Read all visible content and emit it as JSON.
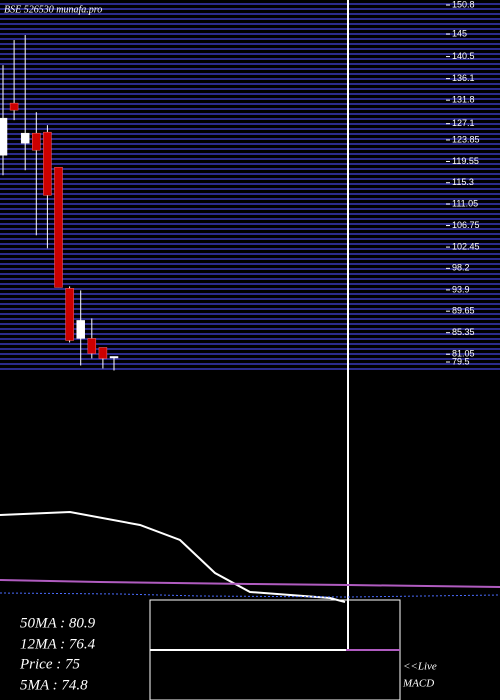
{
  "chart_data": {
    "type": "candlestick",
    "title": "BSE 526530  munafa.pro",
    "open": [
      120.8,
      131.2,
      123.2,
      125.2,
      125.4,
      118.4,
      94.2,
      84.2,
      84.2,
      82.4,
      80.4
    ],
    "high": [
      138.8,
      143.8,
      144.8,
      129.4,
      126.8,
      118.4,
      94.6,
      93.8,
      88.2,
      82.4,
      80.6
    ],
    "low": [
      116.8,
      127.8,
      117.8,
      104.8,
      102.2,
      94.4,
      83.4,
      78.8,
      80.2,
      78.2,
      77.8
    ],
    "close": [
      128.2,
      129.8,
      125.2,
      121.8,
      112.8,
      94.4,
      83.8,
      87.8,
      81.2,
      80.2,
      80.6
    ],
    "up_color": "#ffffff",
    "down_color": "#cc0000",
    "ylim": [
      77.5,
      151.8
    ],
    "yticks": [
      150.8,
      145,
      140.5,
      136.1,
      131.8,
      127.1,
      {
        "value": 123.85,
        "label": "123.85"
      },
      {
        "value": 119.55,
        "label": "119.55"
      },
      115.3,
      {
        "value": 111.05,
        "label": "111.05"
      },
      {
        "value": 106.75,
        "label": "106.75"
      },
      {
        "value": 102.45,
        "label": "102.45"
      },
      98.2,
      93.9,
      {
        "value": 89.65,
        "label": "89.65"
      },
      {
        "value": 85.35,
        "label": "85.35"
      },
      {
        "value": 81.05,
        "label": "81.05"
      },
      79.5
    ]
  },
  "indicators": [
    "50MA : 80.9",
    "12MA : 76.4",
    "Price  : 75",
    "5MA : 74.8"
  ],
  "live": "<<Live",
  "macd": "MACD"
}
